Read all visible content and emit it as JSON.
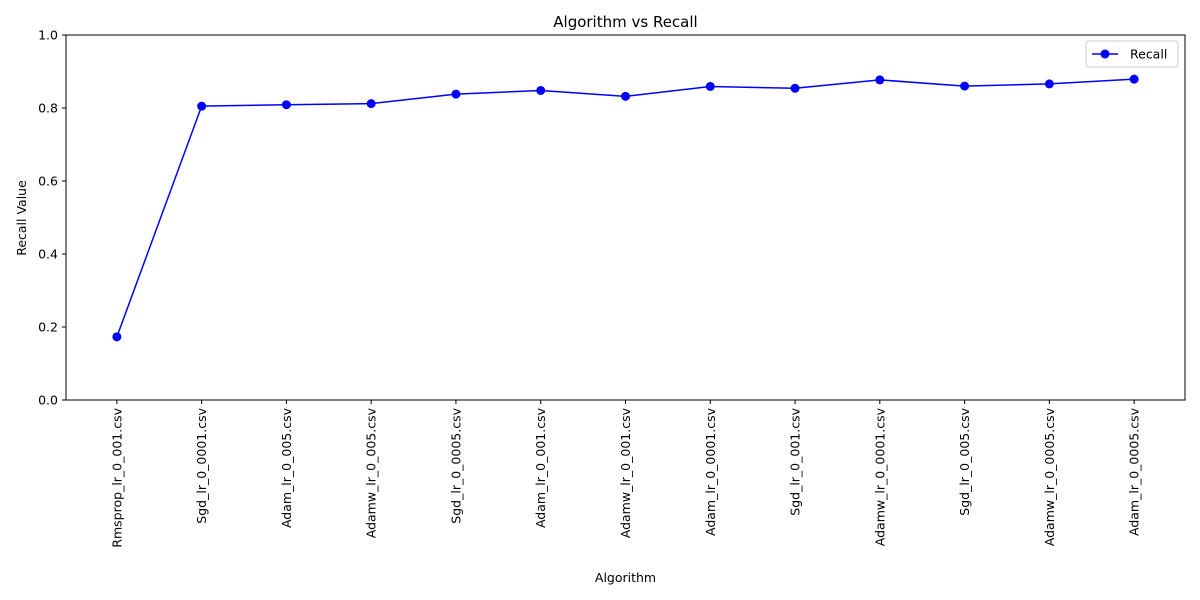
{
  "chart_data": {
    "type": "line",
    "title": "Algorithm vs Recall",
    "xlabel": "Algorithm",
    "ylabel": "Recall Value",
    "categories": [
      "Rmsprop_lr_0_001.csv",
      "Sgd_lr_0_0001.csv",
      "Adam_lr_0_005.csv",
      "Adamw_lr_0_005.csv",
      "Sgd_lr_0_0005.csv",
      "Adam_lr_0_001.csv",
      "Adamw_lr_0_001.csv",
      "Adam_lr_0_0001.csv",
      "Sgd_lr_0_001.csv",
      "Adamw_lr_0_0001.csv",
      "Sgd_lr_0_005.csv",
      "Adamw_lr_0_0005.csv",
      "Adam_lr_0_0005.csv"
    ],
    "series": [
      {
        "name": "Recall",
        "color": "#0000ff",
        "marker": "circle",
        "values": [
          0.173,
          0.805,
          0.809,
          0.812,
          0.838,
          0.848,
          0.832,
          0.859,
          0.854,
          0.877,
          0.86,
          0.866,
          0.879
        ]
      }
    ],
    "ylim": [
      0.0,
      1.0
    ],
    "yticks": [
      "0.0",
      "0.2",
      "0.4",
      "0.6",
      "0.8",
      "1.0"
    ],
    "grid": false,
    "legend_position": "top-right"
  }
}
